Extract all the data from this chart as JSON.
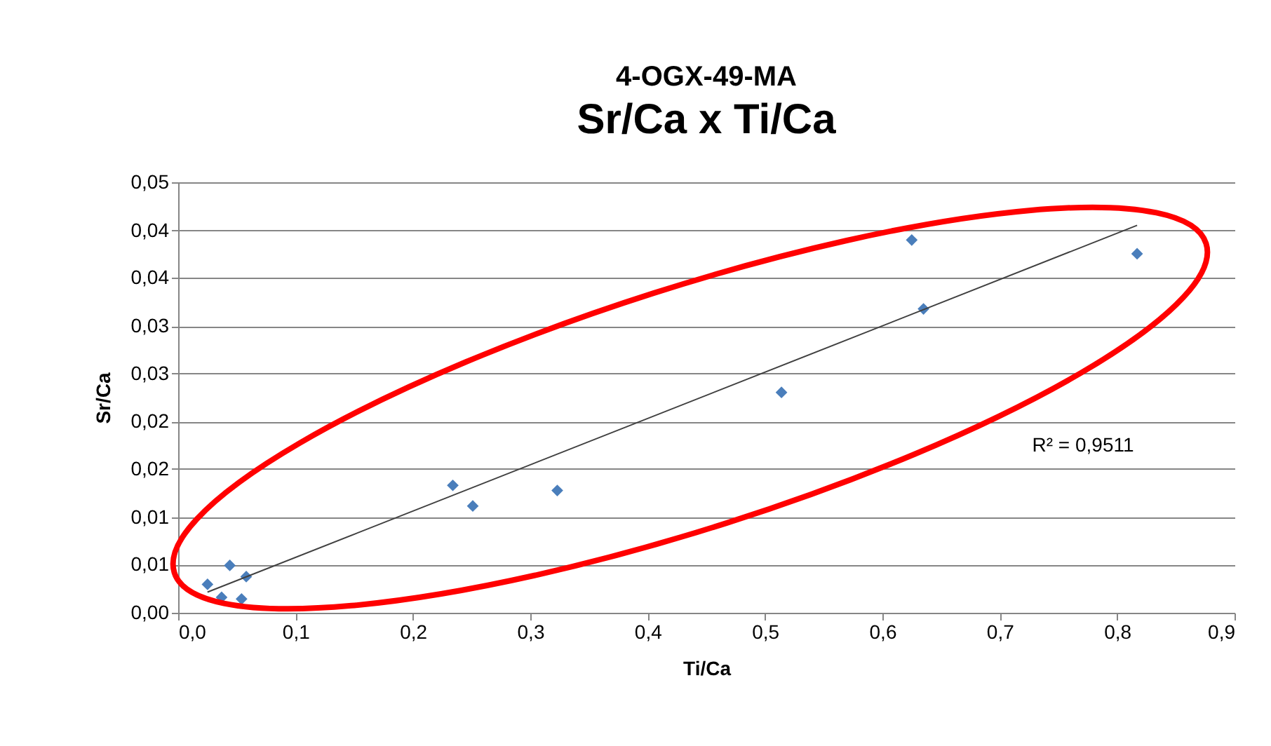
{
  "chart_data": {
    "type": "scatter",
    "title": "4-OGX-49-MA",
    "subtitle": "Sr/Ca x Ti/Ca",
    "xlabel": "Ti/Ca",
    "ylabel": "Sr/Ca",
    "xlim": [
      0,
      0.9
    ],
    "ylim": [
      0,
      0.05
    ],
    "xticks": [
      {
        "value": 0,
        "label": "0,0"
      },
      {
        "value": 0.1,
        "label": "0,1"
      },
      {
        "value": 0.2,
        "label": "0,2"
      },
      {
        "value": 0.3,
        "label": "0,3"
      },
      {
        "value": 0.4,
        "label": "0,4"
      },
      {
        "value": 0.5,
        "label": "0,5"
      },
      {
        "value": 0.6,
        "label": "0,6"
      },
      {
        "value": 0.7,
        "label": "0,7"
      },
      {
        "value": 0.8,
        "label": "0,8"
      },
      {
        "value": 0.9,
        "label": "0,9"
      }
    ],
    "yticks": [
      {
        "value": 0,
        "label": "0,00"
      },
      {
        "value": 0.0056,
        "label": "0,01"
      },
      {
        "value": 0.0111,
        "label": "0,01"
      },
      {
        "value": 0.0167,
        "label": "0,02"
      },
      {
        "value": 0.0222,
        "label": "0,02"
      },
      {
        "value": 0.0278,
        "label": "0,03"
      },
      {
        "value": 0.0333,
        "label": "0,03"
      },
      {
        "value": 0.0389,
        "label": "0,04"
      },
      {
        "value": 0.0444,
        "label": "0,04"
      },
      {
        "value": 0.05,
        "label": "0,05"
      }
    ],
    "grid": "y",
    "series": [
      {
        "color": "#4a7ebb",
        "marker": "diamond",
        "x": [
          0.025,
          0.037,
          0.044,
          0.054,
          0.058,
          0.234,
          0.251,
          0.323,
          0.514,
          0.625,
          0.635,
          0.817
        ],
        "values": [
          0.0033,
          0.0018,
          0.0055,
          0.0016,
          0.0042,
          0.0148,
          0.0124,
          0.0142,
          0.0256,
          0.0433,
          0.0353,
          0.0417
        ]
      },
      {
        "type": "line",
        "color": "#404040",
        "x": [
          0.025,
          0.817
        ],
        "values": [
          0.0024,
          0.045
        ]
      }
    ],
    "annotations": [
      "R² = 0,9511"
    ]
  }
}
